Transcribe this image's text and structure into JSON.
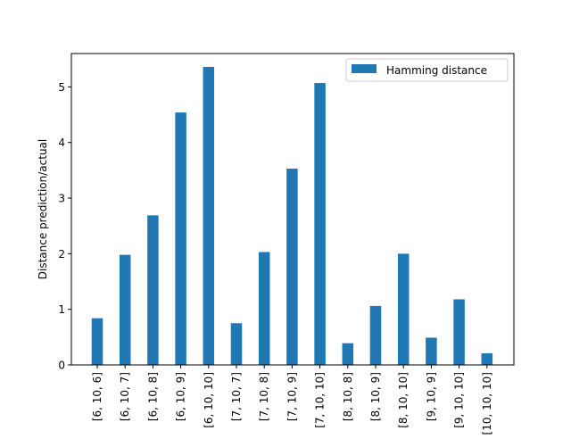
{
  "chart_data": {
    "type": "bar",
    "title": "",
    "xlabel": "",
    "ylabel": "Distance prediction/actual",
    "ylim": [
      0,
      5.6
    ],
    "yticks": [
      "0",
      "1",
      "2",
      "3",
      "4",
      "5"
    ],
    "grid": false,
    "legend_position": "upper right",
    "categories": [
      "[6, 10, 6]",
      "[6, 10, 7]",
      "[6, 10, 8]",
      "[6, 10, 9]",
      "[6, 10, 10]",
      "[7, 10, 7]",
      "[7, 10, 8]",
      "[7, 10, 9]",
      "[7, 10, 10]",
      "[8, 10, 8]",
      "[8, 10, 9]",
      "[8, 10, 10]",
      "[9, 10, 9]",
      "[9, 10, 10]",
      "[10, 10, 10]"
    ],
    "series": [
      {
        "name": "Hamming distance",
        "color": "#1f77b4",
        "values": [
          0.84,
          1.98,
          2.69,
          4.54,
          5.36,
          0.75,
          2.03,
          3.53,
          5.07,
          0.39,
          1.06,
          2.0,
          0.49,
          1.18,
          0.21
        ]
      }
    ]
  }
}
